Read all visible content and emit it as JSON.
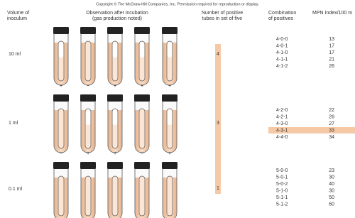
{
  "copyright": "Copyright © The McGraw-Hill Companies, Inc. Permission required for reproduction or display.",
  "headers": {
    "volume": [
      "Volume of",
      "inoculum"
    ],
    "observation": [
      "Observation after incubation",
      "(gas production noted)"
    ],
    "positives": [
      "Number of positive",
      "tubes in set of five"
    ],
    "combination": [
      "Combination",
      "of positives"
    ],
    "mpn": [
      "MPN Index/100 m"
    ]
  },
  "rows": [
    {
      "volume": "10 ml",
      "signs": [
        "+",
        "−",
        "+",
        "+",
        "+"
      ],
      "positives": "4"
    },
    {
      "volume": "1 ml",
      "signs": [
        "−",
        "+",
        "+",
        "−",
        "+"
      ],
      "positives": "3"
    },
    {
      "volume": "0.1 ml",
      "positives": "1"
    }
  ],
  "combinations": [
    [
      {
        "code": "4-0-0",
        "mpn": "13"
      },
      {
        "code": "4-0-1",
        "mpn": "17"
      },
      {
        "code": "4-1-0",
        "mpn": "17"
      },
      {
        "code": "4-1-1",
        "mpn": "21"
      },
      {
        "code": "4-1-2",
        "mpn": "26"
      }
    ],
    [
      {
        "code": "4-2-0",
        "mpn": "22"
      },
      {
        "code": "4-2-1",
        "mpn": "26"
      },
      {
        "code": "4-3-0",
        "mpn": "27"
      },
      {
        "code": "4-3-1",
        "mpn": "33"
      },
      {
        "code": "4-4-0",
        "mpn": "34"
      }
    ],
    [
      {
        "code": "5-0-0",
        "mpn": "23"
      },
      {
        "code": "5-0-1",
        "mpn": "30"
      },
      {
        "code": "5-0-2",
        "mpn": "40"
      },
      {
        "code": "5-1-0",
        "mpn": "30"
      },
      {
        "code": "5-1-1",
        "mpn": "50"
      },
      {
        "code": "5-1-2",
        "mpn": "60"
      }
    ]
  ]
}
